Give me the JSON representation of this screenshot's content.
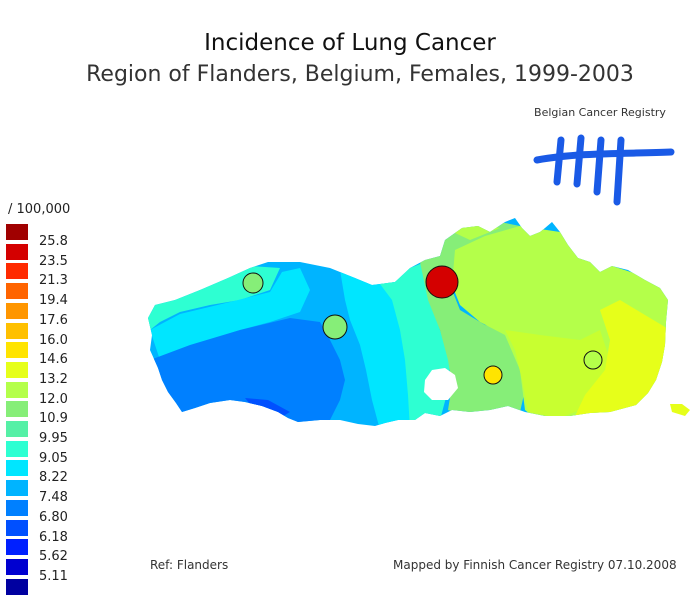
{
  "title": "Incidence of Lung Cancer",
  "subtitle": "Region of Flanders, Belgium, Females, 1999-2003",
  "legend": {
    "unit": "/ 100,000",
    "items": [
      {
        "label": "25.8",
        "color": "#a00000"
      },
      {
        "label": "23.5",
        "color": "#d40000"
      },
      {
        "label": "21.3",
        "color": "#ff2a00"
      },
      {
        "label": "19.4",
        "color": "#ff6400"
      },
      {
        "label": "17.6",
        "color": "#ff9600"
      },
      {
        "label": "16.0",
        "color": "#ffc000"
      },
      {
        "label": "14.6",
        "color": "#ffe400"
      },
      {
        "label": "13.2",
        "color": "#e6ff1a"
      },
      {
        "label": "12.0",
        "color": "#b4ff4a"
      },
      {
        "label": "10.9",
        "color": "#86ee78"
      },
      {
        "label": "9.95",
        "color": "#55f0a6"
      },
      {
        "label": "9.05",
        "color": "#2effd2"
      },
      {
        "label": "8.22",
        "color": "#00e6ff"
      },
      {
        "label": "7.48",
        "color": "#00b4ff"
      },
      {
        "label": "6.80",
        "color": "#0080ff"
      },
      {
        "label": "6.18",
        "color": "#0050ff"
      },
      {
        "label": "5.62",
        "color": "#0020ff"
      },
      {
        "label": "5.11",
        "color": "#0000d0"
      },
      {
        "label": "",
        "color": "#0000a0"
      }
    ]
  },
  "logo": {
    "text": "Belgian Cancer Registry",
    "icon": "tally-marks-icon",
    "color": "#1a5ae6"
  },
  "footer": {
    "ref": "Ref: Flanders",
    "mapped": "Mapped by Finnish Cancer Registry 07.10.2008"
  },
  "markers": [
    {
      "name": "west-flanders-marker",
      "color": "#86ee78"
    },
    {
      "name": "east-flanders-marker",
      "color": "#86ee78"
    },
    {
      "name": "antwerp-marker",
      "color": "#d40000"
    },
    {
      "name": "flemish-brabant-marker",
      "color": "#ffe400"
    },
    {
      "name": "limburg-marker",
      "color": "#b4ff4a"
    }
  ]
}
